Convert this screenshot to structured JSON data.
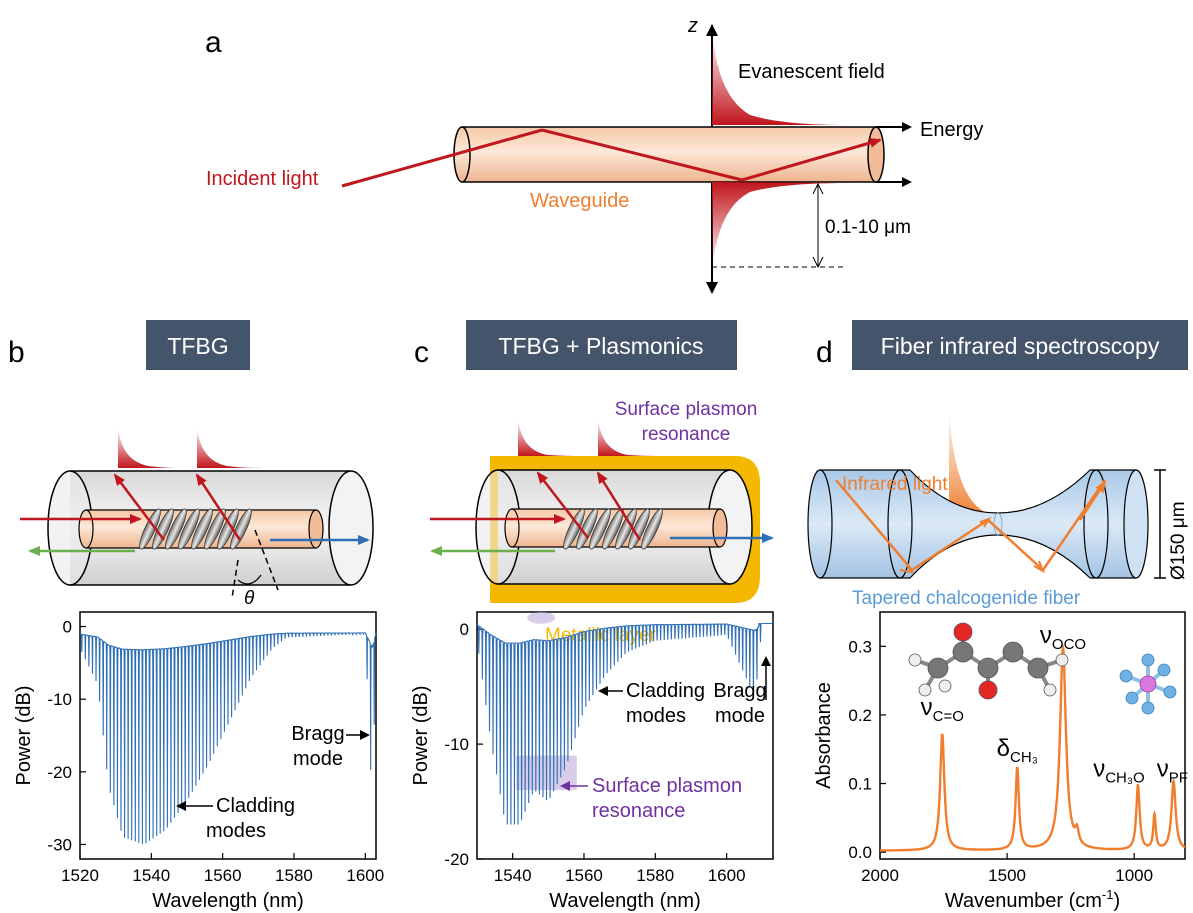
{
  "panel_a": {
    "letter": "a",
    "z_label": "z",
    "evanescent_label": "Evanescent field",
    "energy_label": "Energy",
    "incident_label": "Incident light",
    "waveguide_label": "Waveguide",
    "depth_label": "0.1-10 μm"
  },
  "panel_b": {
    "letter": "b",
    "title": "TFBG",
    "theta": "θ"
  },
  "panel_c": {
    "letter": "c",
    "title": "TFBG + Plasmonics",
    "spr_label_1": "Surface plasmon",
    "spr_label_2": "resonance",
    "metal_label": "Metallic layer"
  },
  "panel_d": {
    "letter": "d",
    "title": "Fiber infrared spectroscopy",
    "ir_label": "Infrared light",
    "fiber_label": "Tapered chalcogenide fiber",
    "diameter_label": "Ø150 μm"
  },
  "colors": {
    "red": "#c0161d",
    "orange": "#ef7f2f",
    "blue": "#2f6fb5",
    "navy": "#44546a",
    "gold": "#f5b800",
    "purple": "#7030a0",
    "green": "#6ab04c"
  },
  "chart_data": [
    {
      "type": "line",
      "panel": "b",
      "xlabel": "Wavelength (nm)",
      "ylabel": "Power (dB)",
      "xlim": [
        1520,
        1603
      ],
      "ylim": [
        -32,
        2
      ],
      "xticks": [
        1520,
        1540,
        1560,
        1580,
        1600
      ],
      "yticks": [
        0,
        -10,
        -20,
        -30
      ],
      "annotations": [
        {
          "text": "Bragg",
          "text2": "mode"
        },
        {
          "text": "Cladding",
          "text2": "modes"
        }
      ],
      "envelope": [
        [
          1520,
          -3
        ],
        [
          1525,
          -8
        ],
        [
          1528,
          -22
        ],
        [
          1532,
          -29
        ],
        [
          1538,
          -30
        ],
        [
          1544,
          -28
        ],
        [
          1550,
          -24
        ],
        [
          1556,
          -19
        ],
        [
          1562,
          -13
        ],
        [
          1568,
          -7
        ],
        [
          1574,
          -3
        ],
        [
          1578,
          -1.5
        ],
        [
          1600,
          -1
        ],
        [
          1602,
          -26
        ],
        [
          1603,
          -1
        ]
      ],
      "mode_spacing_nm": 1.0
    },
    {
      "type": "line",
      "panel": "c",
      "xlabel": "Wavelength (nm)",
      "ylabel": "Power (dB)",
      "xlim": [
        1530,
        1613
      ],
      "ylim": [
        -20,
        1.5
      ],
      "xticks": [
        1540,
        1560,
        1580,
        1600
      ],
      "yticks": [
        0,
        -10,
        -20
      ],
      "annotations": [
        {
          "text": "Cladding",
          "text2": "modes"
        },
        {
          "text": "Bragg",
          "text2": "mode"
        },
        {
          "text": "Surface plasmon",
          "text2": "resonance"
        }
      ],
      "envelope": [
        [
          1530,
          -1
        ],
        [
          1534,
          -10
        ],
        [
          1538,
          -17
        ],
        [
          1542,
          -17
        ],
        [
          1546,
          -14
        ],
        [
          1550,
          -15
        ],
        [
          1555,
          -12
        ],
        [
          1560,
          -7
        ],
        [
          1566,
          -4
        ],
        [
          1572,
          -2
        ],
        [
          1580,
          -1
        ],
        [
          1600,
          -0.5
        ],
        [
          1608,
          -6
        ],
        [
          1610,
          0.5
        ],
        [
          1613,
          0.5
        ]
      ],
      "mode_spacing_nm": 1.0
    },
    {
      "type": "line",
      "panel": "d",
      "xlabel": "Wavenumber (cm",
      "xlabel_sup": "-1",
      "xlabel_end": ")",
      "ylabel": "Absorbance",
      "xlim": [
        2000,
        800
      ],
      "ylim": [
        -0.01,
        0.35
      ],
      "xticks": [
        2000,
        1500,
        1000
      ],
      "yticks": [
        0.0,
        0.1,
        0.2,
        0.3
      ],
      "peaks": [
        {
          "x": 1755,
          "y": 0.17,
          "w": 10
        },
        {
          "x": 1460,
          "y": 0.12,
          "w": 8
        },
        {
          "x": 1280,
          "y": 0.295,
          "w": 14
        },
        {
          "x": 1225,
          "y": 0.02,
          "w": 8
        },
        {
          "x": 985,
          "y": 0.095,
          "w": 8
        },
        {
          "x": 920,
          "y": 0.05,
          "w": 6
        },
        {
          "x": 845,
          "y": 0.1,
          "w": 10
        }
      ],
      "annotations": [
        {
          "text": "ν",
          "sub": "C=O"
        },
        {
          "text": "δ",
          "sub": "CH₃"
        },
        {
          "text": "ν",
          "sub": "OCO"
        },
        {
          "text": "ν",
          "sub": "CH₃O"
        },
        {
          "text": "ν",
          "sub": "PF"
        }
      ]
    }
  ]
}
